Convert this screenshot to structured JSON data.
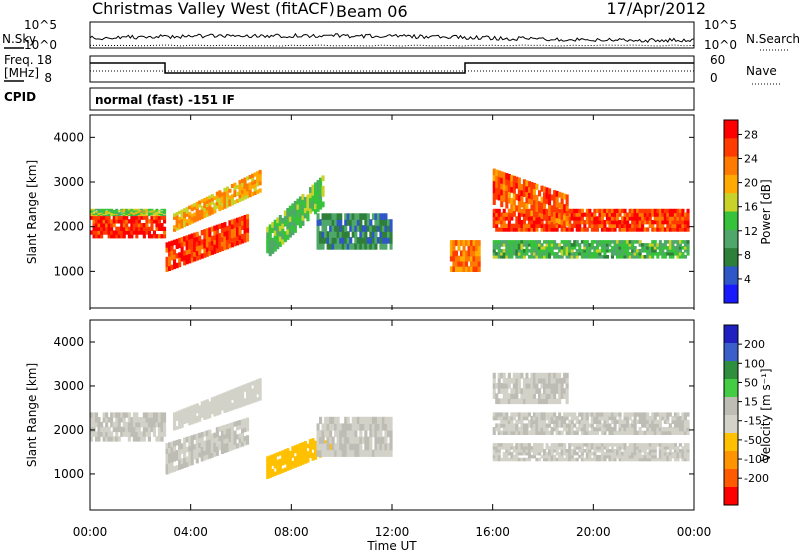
{
  "header": {
    "station": "Christmas Valley West (fitACF)",
    "beam": "Beam 06",
    "date": "17/Apr/2012"
  },
  "param_panels": {
    "nsky_label": "N.Sky",
    "nsky_ticks": [
      "10^5",
      "10^0"
    ],
    "nsearch_label": "N.Search",
    "freq_label_1": "Freq.",
    "freq_label_2": "[MHz]",
    "freq_ticks": [
      "18",
      "8"
    ],
    "nave_label": "Nave",
    "nave_ticks": [
      "60",
      "0"
    ],
    "cpid_label": "CPID",
    "cpid_text": "normal (fast) -151 IF"
  },
  "colors": {
    "power_scale": [
      "#1a1aff",
      "#2f57c8",
      "#2e7f3a",
      "#4fa86a",
      "#37c23c",
      "#c8d22a",
      "#ffaa00",
      "#ff7a00",
      "#ff3b00",
      "#ff0000"
    ],
    "velocity_scale": [
      "#2020c0",
      "#3b5fc8",
      "#2f8f3f",
      "#44cc44",
      "#bdbdb5",
      "#d2d2c8",
      "#ffc000",
      "#ff9400",
      "#ff5a00",
      "#ff0000"
    ]
  },
  "chart_data": [
    {
      "type": "heatmap",
      "name": "power",
      "ylabel": "Slant Range [km]",
      "yticks": [
        1000,
        2000,
        3000,
        4000
      ],
      "ylim": [
        180,
        4500
      ],
      "xlim_hours": [
        0,
        24
      ],
      "colorbar": {
        "label": "Power [dB]",
        "ticks": [
          "4",
          "8",
          "12",
          "16",
          "20",
          "24",
          "28"
        ],
        "range": [
          0,
          30
        ]
      },
      "bands": [
        {
          "t": [
            0.0,
            3.0
          ],
          "r": [
            1750,
            2250
          ],
          "level": 27
        },
        {
          "t": [
            0.0,
            3.0
          ],
          "r": [
            2250,
            2400
          ],
          "level": 15
        },
        {
          "t": [
            3.0,
            6.3
          ],
          "r": [
            1000,
            1650
          ],
          "r_end": [
            1700,
            2300
          ],
          "level": 26
        },
        {
          "t": [
            3.3,
            6.8
          ],
          "r": [
            1900,
            2300
          ],
          "r_end": [
            2800,
            3300
          ],
          "level": 20
        },
        {
          "t": [
            7.0,
            9.3
          ],
          "r": [
            1300,
            2000
          ],
          "r_end": [
            2500,
            3200
          ],
          "level": 13
        },
        {
          "t": [
            9.0,
            12.0
          ],
          "r": [
            1500,
            2300
          ],
          "level": 8
        },
        {
          "t": [
            14.3,
            15.5
          ],
          "r": [
            1000,
            1700
          ],
          "level": 22
        },
        {
          "t": [
            16.0,
            23.8
          ],
          "r": [
            1900,
            2400
          ],
          "level": 26
        },
        {
          "t": [
            16.0,
            19.0
          ],
          "r": [
            2500,
            3300
          ],
          "r_end": [
            2000,
            2700
          ],
          "level": 24
        },
        {
          "t": [
            16.0,
            23.8
          ],
          "r": [
            1300,
            1700
          ],
          "level": 12
        }
      ]
    },
    {
      "type": "heatmap",
      "name": "velocity",
      "ylabel": "Slant Range [km]",
      "yticks": [
        1000,
        2000,
        3000,
        4000
      ],
      "ylim": [
        180,
        4500
      ],
      "xlim_hours": [
        0,
        24
      ],
      "xticks": [
        "00:00",
        "04:00",
        "08:00",
        "12:00",
        "16:00",
        "20:00",
        "00:00"
      ],
      "xlabel": "Time UT",
      "colorbar": {
        "label": "Velocity [m s⁻¹]",
        "ticks": [
          "200",
          "100",
          "50",
          "15",
          "-15",
          "-50",
          "-100",
          "-200"
        ],
        "range": [
          -250,
          250
        ]
      },
      "bands": [
        {
          "t": [
            0.0,
            3.0
          ],
          "r": [
            1750,
            2400
          ],
          "level": 0
        },
        {
          "t": [
            3.0,
            6.3
          ],
          "r": [
            1000,
            1700
          ],
          "r_end": [
            1700,
            2300
          ],
          "level": 0
        },
        {
          "t": [
            3.3,
            6.8
          ],
          "r": [
            2000,
            2400
          ],
          "r_end": [
            2700,
            3200
          ],
          "level": -35
        },
        {
          "t": [
            7.0,
            9.6
          ],
          "r": [
            900,
            1400
          ],
          "r_end": [
            1500,
            2000
          ],
          "level": -80
        },
        {
          "t": [
            9.0,
            12.0
          ],
          "r": [
            1400,
            2300
          ],
          "level": 0
        },
        {
          "t": [
            16.0,
            23.8
          ],
          "r": [
            1900,
            2400
          ],
          "level": 0
        },
        {
          "t": [
            16.0,
            19.0
          ],
          "r": [
            2600,
            3300
          ],
          "level": 0
        },
        {
          "t": [
            16.0,
            23.8
          ],
          "r": [
            1300,
            1700
          ],
          "level": -5
        }
      ]
    }
  ]
}
